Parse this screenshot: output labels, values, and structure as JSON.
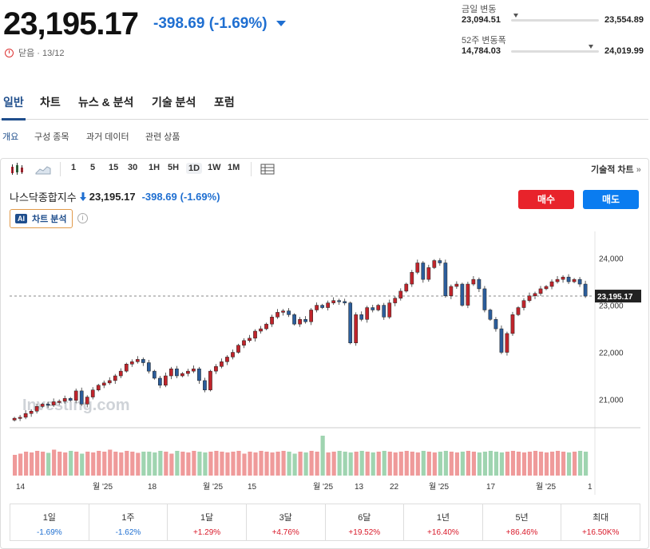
{
  "quote": {
    "price": "23,195.17",
    "change": "-398.69",
    "change_pct": "(-1.69%)",
    "status": "닫음 · 13/12",
    "color_down": "#1f6fd1",
    "color_up": "#d91a2a"
  },
  "day_range": {
    "label": "금일 변동",
    "low": "23,094.51",
    "high": "23,554.89",
    "position": 0.05
  },
  "week52_range": {
    "label": "52주 변동폭",
    "low": "14,784.03",
    "high": "24,019.99",
    "position": 0.91
  },
  "tabs": [
    "일반",
    "차트",
    "뉴스 & 분석",
    "기술 분석",
    "포럼"
  ],
  "subtabs": [
    "개요",
    "구성 종목",
    "과거 데이터",
    "관련 상품"
  ],
  "toolbar": {
    "intervals": [
      "1",
      "5",
      "15",
      "30",
      "1H",
      "5H",
      "1D",
      "1W",
      "1M"
    ],
    "selected": "1D",
    "tech_chart": "기술적 차트",
    "tech_chart_chevron": "»"
  },
  "chart_header": {
    "name": "나스닥종합지수",
    "price": "23,195.17",
    "change": "-398.69",
    "change_pct": "(-1.69%)",
    "ai_badge": "AI",
    "ai_label": "차트 분석",
    "info": "i"
  },
  "actions": {
    "buy": "매수",
    "sell": "매도",
    "buy_color": "#e8232b",
    "sell_color": "#0a7cf0"
  },
  "watermark": "Investing.com",
  "chart_data": {
    "type": "candlestick",
    "yticks": [
      "24,000",
      "23,000",
      "22,000",
      "21,000"
    ],
    "ylim": [
      20500,
      24400
    ],
    "last_price": 23195.17,
    "last_price_label": "23,195.17",
    "xticks": [
      "14",
      "월 '25",
      "18",
      "월 '25",
      "15",
      "월 '25",
      "13",
      "22",
      "월 '25",
      "17",
      "월 '25",
      "1"
    ],
    "closes": [
      20600,
      20620,
      20700,
      20750,
      20850,
      20900,
      20880,
      20950,
      20960,
      21020,
      20980,
      21180,
      20900,
      21050,
      21200,
      21300,
      21350,
      21400,
      21500,
      21600,
      21750,
      21800,
      21850,
      21780,
      21600,
      21450,
      21300,
      21500,
      21650,
      21500,
      21550,
      21600,
      21650,
      21400,
      21200,
      21600,
      21700,
      21800,
      21900,
      22000,
      22150,
      22250,
      22300,
      22450,
      22500,
      22600,
      22750,
      22850,
      22880,
      22800,
      22600,
      22700,
      22650,
      22900,
      23000,
      22950,
      23050,
      23100,
      23080,
      23050,
      22200,
      22800,
      22700,
      22950,
      22900,
      23000,
      22750,
      23050,
      23150,
      23300,
      23450,
      23700,
      23900,
      23550,
      23800,
      23950,
      23900,
      23200,
      23400,
      23450,
      23000,
      23450,
      23550,
      23350,
      22900,
      22700,
      22500,
      22000,
      22400,
      22800,
      22950,
      23100,
      23200,
      23250,
      23350,
      23400,
      23500,
      23550,
      23600,
      23500,
      23550,
      23450,
      23195
    ],
    "volume": [
      0.52,
      0.55,
      0.6,
      0.58,
      0.62,
      0.6,
      0.57,
      0.65,
      0.6,
      0.58,
      0.62,
      0.6,
      0.55,
      0.6,
      0.58,
      0.62,
      0.6,
      0.65,
      0.6,
      0.58,
      0.62,
      0.6,
      0.57,
      0.6,
      0.6,
      0.58,
      0.62,
      0.6,
      0.55,
      0.62,
      0.6,
      0.58,
      0.62,
      0.6,
      0.58,
      0.6,
      0.62,
      0.6,
      0.58,
      0.6,
      0.62,
      0.55,
      0.6,
      0.58,
      0.62,
      0.6,
      0.58,
      0.6,
      0.62,
      0.6,
      0.55,
      0.6,
      0.58,
      0.62,
      0.6,
      1.0,
      0.58,
      0.6,
      0.62,
      0.6,
      0.58,
      0.6,
      0.62,
      0.6,
      0.58,
      0.6,
      0.62,
      0.6,
      0.58,
      0.6,
      0.62,
      0.6,
      0.58,
      0.62,
      0.6,
      0.58,
      0.6,
      0.62,
      0.6,
      0.58,
      0.6,
      0.62,
      0.6,
      0.58,
      0.6,
      0.62,
      0.6,
      0.58,
      0.6,
      0.62,
      0.6,
      0.58,
      0.6,
      0.62,
      0.6,
      0.58,
      0.6,
      0.62,
      0.6,
      0.58,
      0.6,
      0.62,
      0.6
    ]
  },
  "performance": [
    {
      "period": "1일",
      "value": "-1.69%",
      "dir": "down"
    },
    {
      "period": "1주",
      "value": "-1.62%",
      "dir": "down"
    },
    {
      "period": "1달",
      "value": "+1.29%",
      "dir": "up"
    },
    {
      "period": "3달",
      "value": "+4.76%",
      "dir": "up"
    },
    {
      "period": "6달",
      "value": "+19.52%",
      "dir": "up"
    },
    {
      "period": "1년",
      "value": "+16.40%",
      "dir": "up"
    },
    {
      "period": "5년",
      "value": "+86.46%",
      "dir": "up"
    },
    {
      "period": "최대",
      "value": "+16.50K%",
      "dir": "up"
    }
  ]
}
